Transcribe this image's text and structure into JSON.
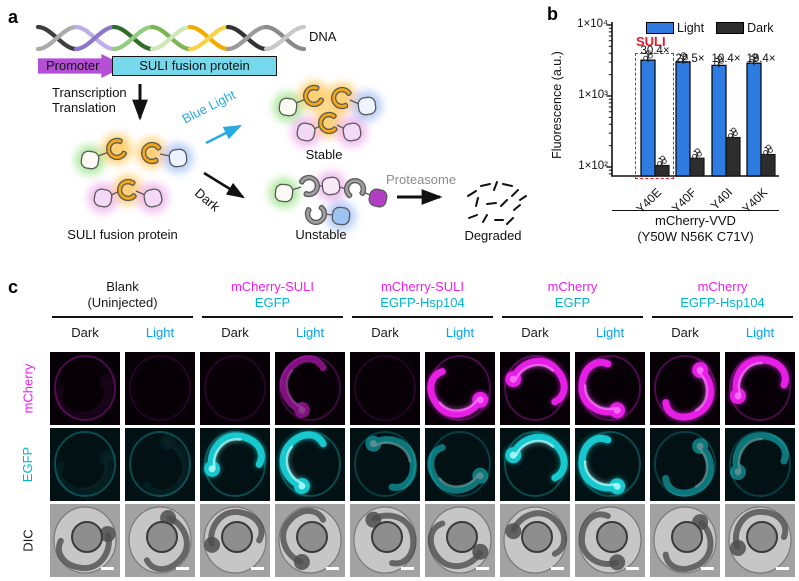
{
  "panel_a": {
    "label": "a",
    "dna": "DNA",
    "promoter": "Promoter",
    "gene_box": "SULI fusion protein",
    "transcription": "Transcription",
    "translation": "Translation",
    "blue_light": "Blue Light",
    "dark": "Dark",
    "stable": "Stable",
    "unstable": "Unstable",
    "fusion_protein": "SULI fusion protein",
    "proteasome": "Proteasome",
    "degraded": "Degraded",
    "blue_light_color": "#29abe2",
    "proteasome_color": "#8c8c8c"
  },
  "panel_b": {
    "label": "b"
  },
  "chart_data": {
    "type": "bar",
    "yscale": "log",
    "ylabel": "Fluorescence (a.u.)",
    "ylim": [
      75,
      10000
    ],
    "ytick_values": [
      10000,
      1000,
      100
    ],
    "ytick_labels": [
      "1×10⁴",
      "1×10³",
      "1×10²"
    ],
    "categories": [
      "Y40E",
      "Y40F",
      "Y40I",
      "Y40K"
    ],
    "series": [
      {
        "name": "Light",
        "color": "#2e7ce2",
        "values": [
          3200,
          3000,
          2700,
          2900
        ]
      },
      {
        "name": "Dark",
        "color": "#2d2d2d",
        "values": [
          105,
          133,
          260,
          150
        ]
      }
    ],
    "fold_change_labels": [
      "30.4×",
      "22.5×",
      "10.4×",
      "19.4×"
    ],
    "highlight": {
      "label": "SULI",
      "color": "#e8192c",
      "group": "Y40E"
    },
    "xgroup_label_line1": "mCherry-VVD",
    "xgroup_label_line2": "(Y50W N56K C71V)",
    "legend_position": "top"
  },
  "panel_c": {
    "label": "c",
    "row_labels": [
      {
        "text": "mCherry",
        "color": "#ee1fee"
      },
      {
        "text": "EGFP",
        "color": "#00b7c8"
      },
      {
        "text": "DIC",
        "color": "#1a1a1a"
      }
    ],
    "groups": [
      {
        "line1": "Blank",
        "line2": "(Uninjected)",
        "line1_color": "#1a1a1a",
        "line2_color": "#1a1a1a"
      },
      {
        "line1": "mCherry-SULI",
        "line2": "EGFP",
        "line1_color": "#ee1fee",
        "line2_color": "#00b7c8"
      },
      {
        "line1": "mCherry-SULI",
        "line2": "EGFP-Hsp104",
        "line1_color": "#ee1fee",
        "line2_color": "#00b7c8"
      },
      {
        "line1": "mCherry",
        "line2": "EGFP",
        "line1_color": "#ee1fee",
        "line2_color": "#00b7c8"
      },
      {
        "line1": "mCherry",
        "line2": "EGFP-Hsp104",
        "line1_color": "#ee1fee",
        "line2_color": "#00b7c8"
      }
    ],
    "conditions": [
      {
        "text": "Dark",
        "color": "#1a1a1a"
      },
      {
        "text": "Light",
        "color": "#00a3f5"
      }
    ],
    "rows": [
      {
        "key": "mcherry",
        "channel_color": "#e61ee6",
        "core_color": "#ff7dff",
        "bg": "#070007",
        "intensities": [
          "faint",
          "vfaint",
          "vfaint",
          "moderate",
          "vfaint",
          "bright",
          "bright",
          "bright",
          "bright",
          "bright"
        ]
      },
      {
        "key": "egfp",
        "channel_color": "#17c9cf",
        "core_color": "#bdffff",
        "bg": "#021113",
        "intensities": [
          "faint",
          "faint",
          "bright",
          "bright",
          "moderate",
          "moderate",
          "bright",
          "bright",
          "moderate",
          "moderate"
        ]
      },
      {
        "key": "dic",
        "type": "dic",
        "intensities": [
          "embryo",
          "embryo",
          "embryo",
          "embryo",
          "embryo",
          "embryo",
          "embryo",
          "embryo",
          "embryo",
          "embryo"
        ]
      }
    ]
  }
}
